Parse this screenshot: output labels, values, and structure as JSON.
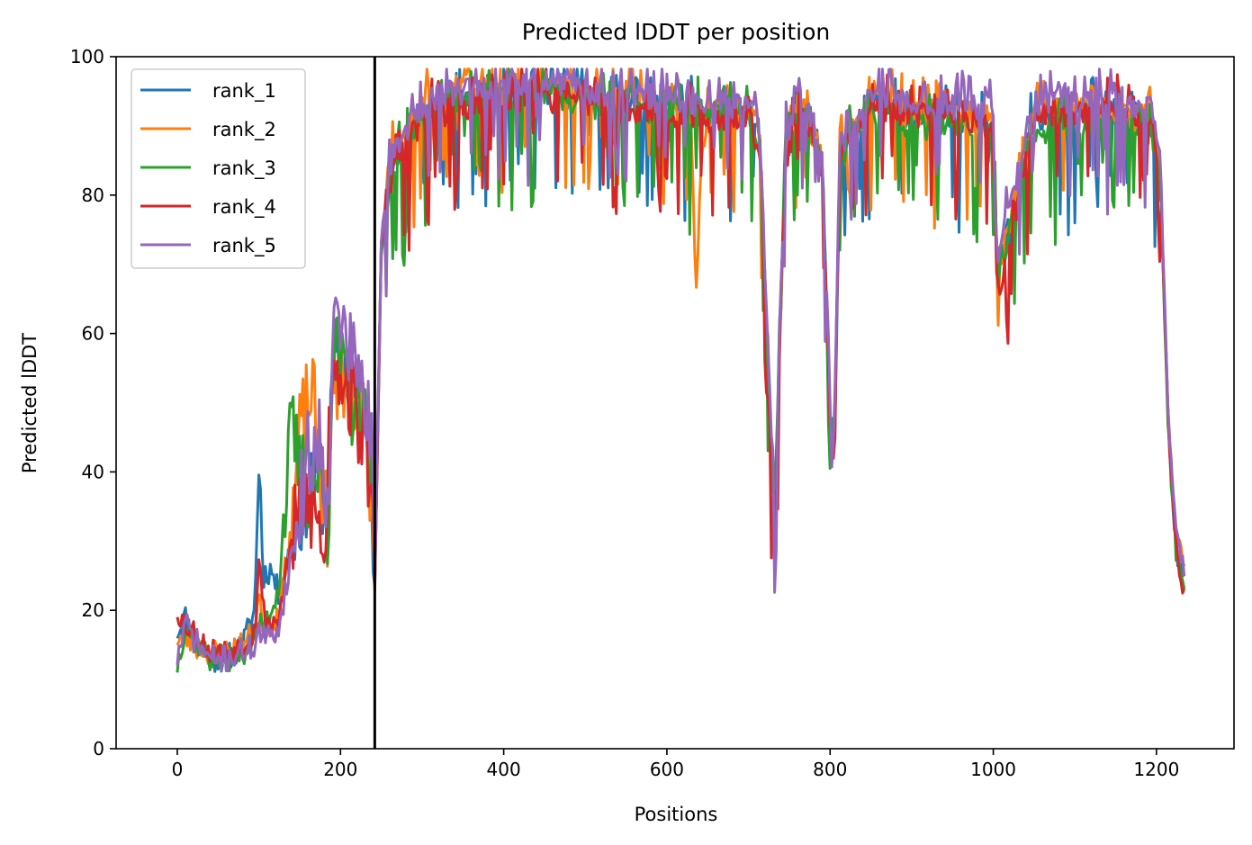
{
  "chart_data": {
    "type": "line",
    "title": "Predicted lDDT per position",
    "xlabel": "Positions",
    "ylabel": "Predicted lDDT",
    "xlim": [
      -75,
      1295
    ],
    "ylim": [
      0,
      100
    ],
    "xticks": [
      0,
      200,
      400,
      600,
      800,
      1000,
      1200
    ],
    "yticks": [
      0,
      20,
      40,
      60,
      80,
      100
    ],
    "grid": false,
    "legend_position": "upper-left",
    "vline_x": 242,
    "vline_color": "#000000",
    "series": [
      {
        "name": "rank_1",
        "color": "#1f77b4",
        "seed": 11,
        "x": [
          0,
          10,
          20,
          40,
          60,
          80,
          95,
          100,
          105,
          115,
          125,
          140,
          160,
          175,
          185,
          190,
          200,
          210,
          220,
          230,
          238,
          242,
          250,
          265,
          280,
          300,
          330,
          360,
          400,
          450,
          500,
          550,
          600,
          650,
          700,
          715,
          722,
          732,
          745,
          760,
          775,
          790,
          800,
          805,
          812,
          825,
          840,
          860,
          900,
          950,
          1000,
          1005,
          1050,
          1100,
          1150,
          1195,
          1205,
          1215,
          1225,
          1235
        ],
        "y": [
          17,
          19,
          16,
          13,
          13,
          15,
          20,
          43,
          25,
          26,
          22,
          30,
          38,
          40,
          32,
          55,
          57,
          53,
          50,
          46,
          38,
          25,
          72,
          85,
          86,
          91,
          93,
          94,
          95,
          95,
          94,
          93,
          92,
          91,
          91,
          87,
          60,
          32,
          85,
          93,
          90,
          85,
          48,
          42,
          85,
          88,
          90,
          93,
          91,
          91,
          90,
          68,
          91,
          92,
          92,
          90,
          82,
          45,
          28,
          25
        ]
      },
      {
        "name": "rank_2",
        "color": "#ff7f0e",
        "seed": 23,
        "x": [
          0,
          10,
          20,
          40,
          60,
          80,
          95,
          100,
          105,
          115,
          125,
          140,
          150,
          160,
          165,
          175,
          185,
          190,
          200,
          210,
          220,
          230,
          238,
          242,
          250,
          265,
          280,
          300,
          330,
          360,
          400,
          450,
          500,
          550,
          600,
          630,
          636,
          642,
          650,
          700,
          715,
          722,
          732,
          745,
          760,
          775,
          790,
          800,
          805,
          812,
          825,
          840,
          860,
          900,
          950,
          1000,
          1005,
          1050,
          1100,
          1150,
          1195,
          1205,
          1215,
          1225,
          1235
        ],
        "y": [
          16,
          16,
          15,
          14,
          14,
          15,
          17,
          22,
          18,
          18,
          20,
          32,
          45,
          50,
          52,
          40,
          32,
          50,
          56,
          52,
          50,
          46,
          38,
          25,
          73,
          87,
          88,
          93,
          95,
          96,
          96,
          96,
          95,
          94,
          93,
          90,
          63,
          85,
          92,
          92,
          88,
          60,
          32,
          86,
          94,
          90,
          85,
          48,
          43,
          86,
          89,
          91,
          94,
          92,
          92,
          91,
          68,
          92,
          93,
          92,
          91,
          83,
          46,
          30,
          26
        ]
      },
      {
        "name": "rank_3",
        "color": "#2ca02c",
        "seed": 37,
        "x": [
          0,
          10,
          20,
          40,
          60,
          80,
          95,
          100,
          105,
          115,
          125,
          135,
          140,
          150,
          160,
          175,
          185,
          190,
          200,
          210,
          220,
          230,
          238,
          242,
          250,
          265,
          280,
          300,
          330,
          360,
          400,
          450,
          500,
          550,
          600,
          650,
          700,
          715,
          722,
          732,
          745,
          760,
          775,
          790,
          800,
          805,
          812,
          825,
          840,
          860,
          900,
          950,
          1000,
          1005,
          1050,
          1100,
          1150,
          1195,
          1205,
          1215,
          1225,
          1235
        ],
        "y": [
          12,
          18,
          16,
          13,
          13,
          14,
          16,
          18,
          17,
          20,
          24,
          40,
          46,
          40,
          38,
          40,
          32,
          58,
          55,
          52,
          48,
          45,
          38,
          25,
          72,
          85,
          87,
          92,
          93,
          94,
          94,
          94,
          93,
          93,
          92,
          92,
          91,
          87,
          60,
          33,
          85,
          93,
          90,
          85,
          48,
          42,
          84,
          88,
          90,
          92,
          90,
          89,
          89,
          68,
          89,
          90,
          90,
          89,
          81,
          44,
          27,
          22
        ]
      },
      {
        "name": "rank_4",
        "color": "#d62728",
        "seed": 53,
        "x": [
          0,
          10,
          20,
          40,
          60,
          80,
          95,
          100,
          105,
          115,
          125,
          140,
          150,
          160,
          175,
          180,
          185,
          190,
          200,
          210,
          220,
          230,
          238,
          242,
          250,
          265,
          280,
          300,
          330,
          360,
          400,
          450,
          500,
          550,
          600,
          650,
          700,
          715,
          722,
          732,
          745,
          760,
          775,
          790,
          800,
          805,
          812,
          825,
          840,
          860,
          900,
          950,
          1000,
          1005,
          1050,
          1100,
          1150,
          1195,
          1205,
          1215,
          1225,
          1235
        ],
        "y": [
          20,
          18,
          17,
          14,
          14,
          15,
          17,
          28,
          20,
          18,
          19,
          30,
          33,
          36,
          32,
          26,
          42,
          58,
          55,
          52,
          48,
          44,
          37,
          24,
          72,
          85,
          87,
          91,
          92,
          93,
          94,
          94,
          93,
          92,
          92,
          91,
          91,
          86,
          58,
          30,
          84,
          92,
          89,
          84,
          46,
          40,
          84,
          88,
          90,
          93,
          91,
          91,
          90,
          65,
          91,
          92,
          92,
          90,
          82,
          44,
          27,
          22
        ]
      },
      {
        "name": "rank_5",
        "color": "#9467bd",
        "seed": 71,
        "x": [
          0,
          10,
          20,
          40,
          60,
          80,
          95,
          100,
          105,
          115,
          125,
          140,
          150,
          160,
          175,
          185,
          190,
          200,
          210,
          220,
          230,
          238,
          242,
          250,
          265,
          280,
          300,
          330,
          360,
          400,
          450,
          500,
          550,
          600,
          650,
          700,
          715,
          722,
          732,
          745,
          760,
          775,
          790,
          800,
          805,
          812,
          825,
          840,
          860,
          900,
          950,
          1000,
          1005,
          1050,
          1100,
          1150,
          1195,
          1205,
          1215,
          1225,
          1235
        ],
        "y": [
          13,
          18,
          16,
          13,
          13,
          14,
          15,
          17,
          16,
          16,
          18,
          28,
          35,
          42,
          45,
          36,
          60,
          62,
          58,
          55,
          50,
          44,
          25,
          74,
          87,
          89,
          93,
          95,
          95,
          96,
          96,
          95,
          94,
          94,
          93,
          93,
          88,
          62,
          34,
          87,
          95,
          92,
          87,
          50,
          44,
          87,
          90,
          92,
          95,
          93,
          93,
          92,
          70,
          93,
          94,
          94,
          92,
          84,
          47,
          30,
          25
        ]
      }
    ]
  }
}
